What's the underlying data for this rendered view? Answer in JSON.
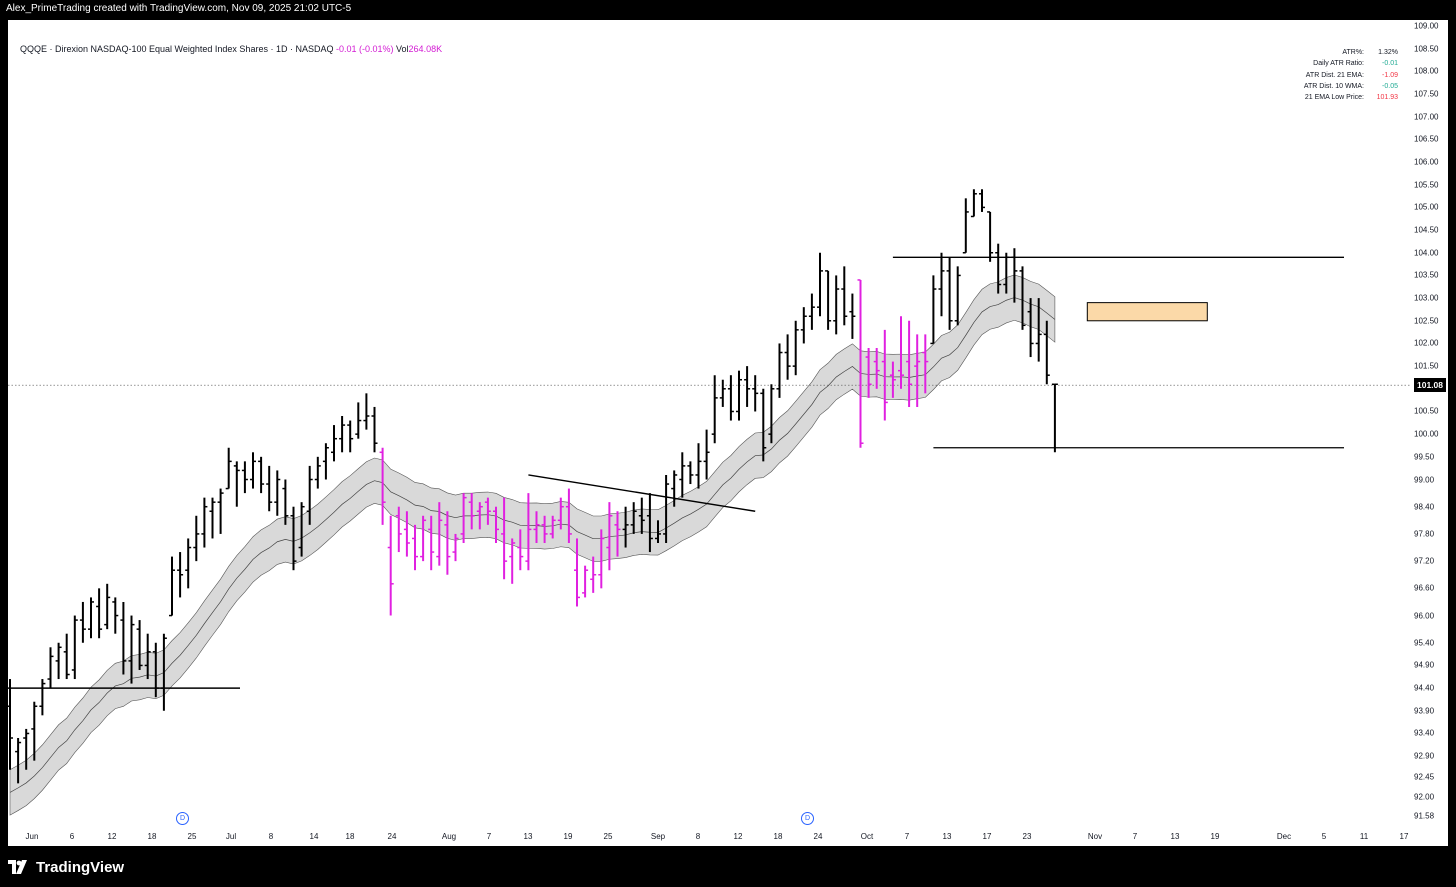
{
  "attribution": "Alex_PrimeTrading created with TradingView.com, Nov 09, 2025 21:02 UTC-5",
  "header": {
    "symbol_line": "QQQE · Direxion NASDAQ-100 Equal Weighted Index Shares · 1D · NASDAQ",
    "change": "-0.01 (-0.01%)",
    "vol_label": "Vol",
    "vol_value": "264.08K"
  },
  "stats": [
    {
      "label": "ATR%:",
      "value": "1.32%",
      "color": "#131722"
    },
    {
      "label": "Daily ATR Ratio:",
      "value": "-0.01",
      "color": "#22ab94"
    },
    {
      "label": "ATR Dist. 21 EMA:",
      "value": "-1.09",
      "color": "#f23645"
    },
    {
      "label": "ATR Dist. 10 WMA:",
      "value": "-0.05",
      "color": "#22ab94"
    },
    {
      "label": "21 EMA Low Price:",
      "value": "101.93",
      "color": "#f23645"
    }
  ],
  "last_price": "101.08",
  "y_ticks": [
    "109.00",
    "108.50",
    "108.00",
    "107.50",
    "107.00",
    "106.50",
    "106.00",
    "105.50",
    "105.00",
    "104.50",
    "104.00",
    "103.50",
    "103.00",
    "102.50",
    "102.00",
    "101.50",
    "100.50",
    "100.00",
    "99.50",
    "99.00",
    "98.40",
    "97.80",
    "97.20",
    "96.60",
    "96.00",
    "95.40",
    "94.90",
    "94.40",
    "93.90",
    "93.40",
    "92.90",
    "92.45",
    "92.00",
    "91.58"
  ],
  "x_ticks": [
    "Jun",
    "6",
    "12",
    "18",
    "25",
    "Jul",
    "8",
    "14",
    "18",
    "24",
    "Aug",
    "7",
    "13",
    "19",
    "25",
    "Sep",
    "8",
    "12",
    "18",
    "24",
    "Oct",
    "7",
    "13",
    "17",
    "23",
    "Nov",
    "7",
    "13",
    "19",
    "Dec",
    "5",
    "11",
    "17"
  ],
  "dividend_marker": "D",
  "logo_text": "TradingView",
  "colors": {
    "up": "#000000",
    "down": "#e020e0",
    "band": "#d9d9d9",
    "zone": "#fbd9a8"
  },
  "chart_data": {
    "type": "ohlc",
    "ylim": [
      91.58,
      109.0
    ],
    "bars": [
      {
        "o": 94.0,
        "h": 94.6,
        "l": 92.6,
        "c": 93.3
      },
      {
        "o": 93.0,
        "h": 93.3,
        "l": 92.3,
        "c": 93.2
      },
      {
        "o": 93.3,
        "h": 93.5,
        "l": 92.6,
        "c": 93.4
      },
      {
        "o": 93.5,
        "h": 94.1,
        "l": 92.8,
        "c": 94.0
      },
      {
        "o": 94.0,
        "h": 94.6,
        "l": 93.8,
        "c": 94.5
      },
      {
        "o": 94.6,
        "h": 95.3,
        "l": 94.4,
        "c": 95.1
      },
      {
        "o": 95.0,
        "h": 95.4,
        "l": 94.6,
        "c": 95.3
      },
      {
        "o": 95.2,
        "h": 95.6,
        "l": 94.6,
        "c": 94.7
      },
      {
        "o": 94.8,
        "h": 96.0,
        "l": 94.6,
        "c": 95.9
      },
      {
        "o": 95.9,
        "h": 96.3,
        "l": 95.4,
        "c": 95.7
      },
      {
        "o": 95.7,
        "h": 96.4,
        "l": 95.5,
        "c": 96.3
      },
      {
        "o": 96.2,
        "h": 96.6,
        "l": 95.5,
        "c": 95.7
      },
      {
        "o": 95.8,
        "h": 96.7,
        "l": 95.7,
        "c": 96.4
      },
      {
        "o": 96.3,
        "h": 96.4,
        "l": 95.6,
        "c": 96.0
      },
      {
        "o": 95.9,
        "h": 96.3,
        "l": 94.7,
        "c": 95.0
      },
      {
        "o": 95.0,
        "h": 96.0,
        "l": 94.5,
        "c": 95.8
      },
      {
        "o": 95.7,
        "h": 95.9,
        "l": 94.8,
        "c": 94.9
      },
      {
        "o": 94.9,
        "h": 95.6,
        "l": 94.6,
        "c": 95.2
      },
      {
        "o": 95.2,
        "h": 95.4,
        "l": 94.2,
        "c": 94.4
      },
      {
        "o": 94.4,
        "h": 95.6,
        "l": 93.9,
        "c": 95.5
      },
      {
        "o": 96.0,
        "h": 97.3,
        "l": 96.0,
        "c": 97.0
      },
      {
        "o": 97.0,
        "h": 97.4,
        "l": 96.4,
        "c": 96.9
      },
      {
        "o": 97.0,
        "h": 97.7,
        "l": 96.6,
        "c": 97.5
      },
      {
        "o": 97.5,
        "h": 98.2,
        "l": 97.2,
        "c": 97.8
      },
      {
        "o": 97.8,
        "h": 98.6,
        "l": 97.5,
        "c": 98.4
      },
      {
        "o": 98.3,
        "h": 98.6,
        "l": 97.7,
        "c": 98.5
      },
      {
        "o": 98.5,
        "h": 98.8,
        "l": 97.8,
        "c": 98.7
      },
      {
        "o": 98.8,
        "h": 99.7,
        "l": 98.8,
        "c": 99.4
      },
      {
        "o": 99.3,
        "h": 99.4,
        "l": 98.4,
        "c": 99.2
      },
      {
        "o": 99.2,
        "h": 99.4,
        "l": 98.7,
        "c": 99.0
      },
      {
        "o": 99.0,
        "h": 99.6,
        "l": 98.8,
        "c": 99.4
      },
      {
        "o": 99.4,
        "h": 99.5,
        "l": 98.7,
        "c": 98.9
      },
      {
        "o": 98.9,
        "h": 99.3,
        "l": 98.3,
        "c": 98.5
      },
      {
        "o": 98.5,
        "h": 99.2,
        "l": 98.2,
        "c": 99.0
      },
      {
        "o": 98.8,
        "h": 99.0,
        "l": 98.0,
        "c": 98.2
      },
      {
        "o": 98.2,
        "h": 98.4,
        "l": 97.0,
        "c": 97.2
      },
      {
        "o": 97.5,
        "h": 98.5,
        "l": 97.3,
        "c": 98.4
      },
      {
        "o": 98.3,
        "h": 99.3,
        "l": 98.0,
        "c": 99.0
      },
      {
        "o": 99.0,
        "h": 99.5,
        "l": 98.8,
        "c": 99.3
      },
      {
        "o": 99.4,
        "h": 99.8,
        "l": 99.0,
        "c": 99.7
      },
      {
        "o": 99.6,
        "h": 100.2,
        "l": 99.4,
        "c": 99.9
      },
      {
        "o": 99.9,
        "h": 100.4,
        "l": 99.6,
        "c": 100.2
      },
      {
        "o": 100.2,
        "h": 100.3,
        "l": 99.6,
        "c": 99.9
      },
      {
        "o": 100.0,
        "h": 100.7,
        "l": 99.9,
        "c": 100.3
      },
      {
        "o": 100.3,
        "h": 100.9,
        "l": 100.1,
        "c": 100.4
      },
      {
        "o": 100.4,
        "h": 100.6,
        "l": 99.6,
        "c": 99.8
      },
      {
        "o": 99.6,
        "h": 99.7,
        "l": 98.0,
        "c": 98.5
      },
      {
        "o": 97.5,
        "h": 98.2,
        "l": 96.0,
        "c": 96.7
      },
      {
        "o": 98.2,
        "h": 98.4,
        "l": 97.4,
        "c": 97.8
      },
      {
        "o": 97.9,
        "h": 98.3,
        "l": 97.3,
        "c": 97.6
      },
      {
        "o": 97.7,
        "h": 98.0,
        "l": 97.0,
        "c": 97.3
      },
      {
        "o": 97.3,
        "h": 98.2,
        "l": 97.2,
        "c": 98.1
      },
      {
        "o": 97.9,
        "h": 98.2,
        "l": 97.0,
        "c": 97.4
      },
      {
        "o": 97.3,
        "h": 98.5,
        "l": 97.1,
        "c": 98.1
      },
      {
        "o": 98.0,
        "h": 98.3,
        "l": 96.9,
        "c": 97.3
      },
      {
        "o": 97.4,
        "h": 97.8,
        "l": 97.2,
        "c": 97.7
      },
      {
        "o": 97.8,
        "h": 98.7,
        "l": 97.6,
        "c": 98.6
      },
      {
        "o": 98.5,
        "h": 98.7,
        "l": 97.9,
        "c": 98.2
      },
      {
        "o": 98.3,
        "h": 98.5,
        "l": 97.9,
        "c": 98.4
      },
      {
        "o": 98.5,
        "h": 98.6,
        "l": 98.0,
        "c": 98.3
      },
      {
        "o": 98.3,
        "h": 98.4,
        "l": 97.6,
        "c": 97.9
      },
      {
        "o": 97.8,
        "h": 98.6,
        "l": 96.8,
        "c": 97.2
      },
      {
        "o": 97.3,
        "h": 97.7,
        "l": 96.7,
        "c": 97.6
      },
      {
        "o": 97.5,
        "h": 97.9,
        "l": 97.0,
        "c": 97.3
      },
      {
        "o": 97.2,
        "h": 98.7,
        "l": 97.0,
        "c": 97.9
      },
      {
        "o": 97.9,
        "h": 98.3,
        "l": 97.6,
        "c": 98.0
      },
      {
        "o": 98.0,
        "h": 98.2,
        "l": 97.6,
        "c": 97.8
      },
      {
        "o": 97.8,
        "h": 98.2,
        "l": 97.7,
        "c": 98.1
      },
      {
        "o": 98.1,
        "h": 98.6,
        "l": 97.9,
        "c": 98.4
      },
      {
        "o": 98.4,
        "h": 98.8,
        "l": 97.6,
        "c": 97.8
      },
      {
        "o": 97.0,
        "h": 97.7,
        "l": 96.2,
        "c": 96.4
      },
      {
        "o": 96.5,
        "h": 97.1,
        "l": 96.4,
        "c": 97.0
      },
      {
        "o": 96.8,
        "h": 97.3,
        "l": 96.5,
        "c": 96.9
      },
      {
        "o": 96.9,
        "h": 97.9,
        "l": 96.6,
        "c": 97.7
      },
      {
        "o": 97.5,
        "h": 98.5,
        "l": 97.0,
        "c": 98.2
      },
      {
        "o": 98.0,
        "h": 98.3,
        "l": 97.3,
        "c": 97.9
      },
      {
        "o": 97.9,
        "h": 98.4,
        "l": 97.5,
        "c": 98.0
      },
      {
        "o": 98.0,
        "h": 98.5,
        "l": 97.8,
        "c": 98.3
      },
      {
        "o": 98.2,
        "h": 98.6,
        "l": 97.8,
        "c": 98.1
      },
      {
        "o": 98.2,
        "h": 98.7,
        "l": 97.4,
        "c": 97.7
      },
      {
        "o": 97.7,
        "h": 98.1,
        "l": 97.6,
        "c": 97.8
      },
      {
        "o": 97.8,
        "h": 99.1,
        "l": 97.6,
        "c": 98.9
      },
      {
        "o": 98.8,
        "h": 99.2,
        "l": 98.4,
        "c": 99.1
      },
      {
        "o": 99.0,
        "h": 99.6,
        "l": 98.6,
        "c": 99.3
      },
      {
        "o": 99.3,
        "h": 99.4,
        "l": 98.9,
        "c": 99.1
      },
      {
        "o": 99.1,
        "h": 99.8,
        "l": 98.8,
        "c": 99.4
      },
      {
        "o": 99.4,
        "h": 100.1,
        "l": 99.0,
        "c": 99.6
      },
      {
        "o": 100.0,
        "h": 101.3,
        "l": 99.8,
        "c": 100.8
      },
      {
        "o": 100.8,
        "h": 101.2,
        "l": 100.6,
        "c": 101.0
      },
      {
        "o": 101.0,
        "h": 101.3,
        "l": 100.3,
        "c": 100.5
      },
      {
        "o": 100.5,
        "h": 101.4,
        "l": 100.3,
        "c": 101.2
      },
      {
        "o": 101.2,
        "h": 101.5,
        "l": 100.6,
        "c": 101.0
      },
      {
        "o": 101.0,
        "h": 101.3,
        "l": 100.5,
        "c": 100.9
      },
      {
        "o": 100.9,
        "h": 101.0,
        "l": 99.4,
        "c": 99.7
      },
      {
        "o": 100.0,
        "h": 101.1,
        "l": 99.8,
        "c": 101.0
      },
      {
        "o": 101.0,
        "h": 102.0,
        "l": 100.8,
        "c": 101.8
      },
      {
        "o": 101.8,
        "h": 102.2,
        "l": 101.2,
        "c": 101.5
      },
      {
        "o": 101.5,
        "h": 102.5,
        "l": 101.3,
        "c": 102.3
      },
      {
        "o": 102.3,
        "h": 102.8,
        "l": 102.0,
        "c": 102.6
      },
      {
        "o": 102.6,
        "h": 103.1,
        "l": 102.3,
        "c": 102.8
      },
      {
        "o": 102.8,
        "h": 104.0,
        "l": 102.6,
        "c": 103.6
      },
      {
        "o": 103.6,
        "h": 103.6,
        "l": 102.3,
        "c": 102.5
      },
      {
        "o": 102.5,
        "h": 103.5,
        "l": 102.2,
        "c": 103.2
      },
      {
        "o": 103.2,
        "h": 103.7,
        "l": 102.4,
        "c": 102.6
      },
      {
        "o": 102.7,
        "h": 103.1,
        "l": 102.1,
        "c": 102.6
      },
      {
        "o": 103.4,
        "h": 103.4,
        "l": 99.7,
        "c": 99.8
      },
      {
        "o": 101.7,
        "h": 101.9,
        "l": 100.8,
        "c": 101.1
      },
      {
        "o": 101.6,
        "h": 101.9,
        "l": 101.0,
        "c": 101.4
      },
      {
        "o": 101.6,
        "h": 102.3,
        "l": 100.3,
        "c": 100.7
      },
      {
        "o": 101.3,
        "h": 101.6,
        "l": 100.8,
        "c": 101.2
      },
      {
        "o": 101.4,
        "h": 102.6,
        "l": 101.0,
        "c": 101.3
      },
      {
        "o": 101.6,
        "h": 102.5,
        "l": 100.6,
        "c": 101.1
      },
      {
        "o": 101.5,
        "h": 102.2,
        "l": 100.6,
        "c": 101.6
      },
      {
        "o": 101.8,
        "h": 102.2,
        "l": 100.9,
        "c": 101.6
      },
      {
        "o": 102.0,
        "h": 103.5,
        "l": 102.0,
        "c": 103.2
      },
      {
        "o": 103.2,
        "h": 104.0,
        "l": 102.6,
        "c": 103.6
      },
      {
        "o": 103.6,
        "h": 103.9,
        "l": 102.3,
        "c": 102.5
      },
      {
        "o": 102.5,
        "h": 103.7,
        "l": 102.4,
        "c": 103.5
      },
      {
        "o": 104.0,
        "h": 105.2,
        "l": 104.0,
        "c": 104.9
      },
      {
        "o": 104.8,
        "h": 105.4,
        "l": 104.8,
        "c": 105.3
      },
      {
        "o": 105.3,
        "h": 105.4,
        "l": 104.9,
        "c": 105.0
      },
      {
        "o": 104.9,
        "h": 104.9,
        "l": 103.8,
        "c": 104.0
      },
      {
        "o": 104.0,
        "h": 104.2,
        "l": 103.1,
        "c": 103.3
      },
      {
        "o": 103.3,
        "h": 104.0,
        "l": 103.1,
        "c": 103.9
      },
      {
        "o": 103.9,
        "h": 104.1,
        "l": 102.9,
        "c": 103.6
      },
      {
        "o": 103.6,
        "h": 103.7,
        "l": 102.3,
        "c": 102.4
      },
      {
        "o": 102.7,
        "h": 103.0,
        "l": 101.7,
        "c": 102.0
      },
      {
        "o": 102.0,
        "h": 103.0,
        "l": 101.6,
        "c": 102.2
      },
      {
        "o": 102.2,
        "h": 102.5,
        "l": 101.1,
        "c": 101.3
      },
      {
        "o": 101.1,
        "h": 101.1,
        "l": 99.6,
        "c": 101.1
      }
    ],
    "ema_band": {
      "upper": [],
      "lower": []
    },
    "horizontal_lines": [
      94.4,
      103.9,
      99.7
    ],
    "trendline": [
      [
        99.1
      ],
      [
        98.3
      ]
    ],
    "supply_zone": [
      102.5,
      102.9
    ]
  }
}
